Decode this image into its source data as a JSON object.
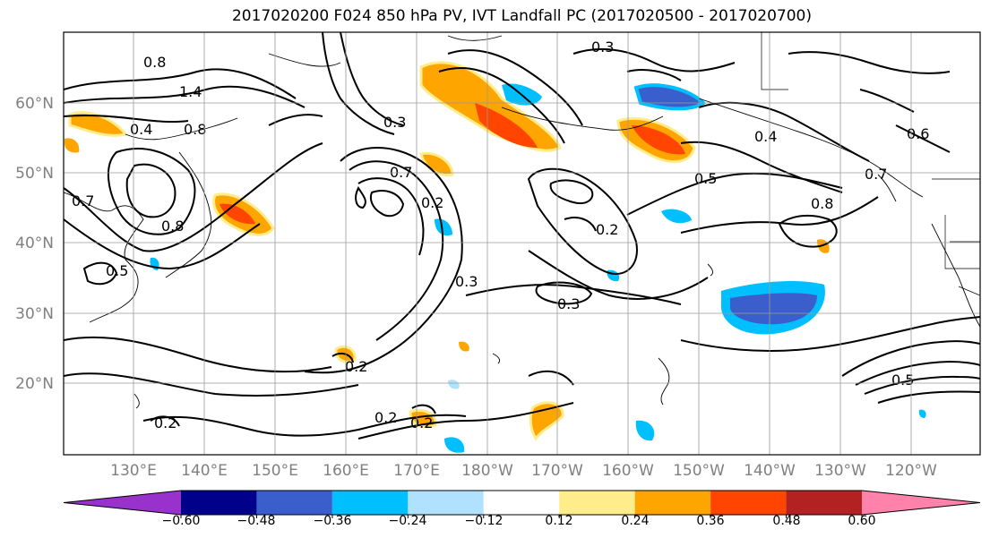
{
  "title": "2017020200 F024 850 hPa PV, IVT Landfall PC (2017020500 - 2017020700)",
  "lat_labels": [
    "60°N",
    "50°N",
    "40°N",
    "30°N",
    "20°N"
  ],
  "lon_labels": [
    "130°E",
    "140°E",
    "150°E",
    "160°E",
    "170°E",
    "180°W",
    "170°W",
    "160°W",
    "150°W",
    "140°W",
    "130°W",
    "120°W"
  ],
  "colorbar": {
    "colors": [
      "#9932cc",
      "#00008b",
      "#3a5fcd",
      "#00bfff",
      "#b0e2ff",
      "#ffffff",
      "#ffec8b",
      "#ffa500",
      "#ff4500",
      "#b22222",
      "#ff82ab"
    ],
    "tick_labels": [
      "−0.60",
      "−0.48",
      "−0.36",
      "−0.24",
      "−0.12",
      "0.12",
      "0.24",
      "0.36",
      "0.48",
      "0.60"
    ]
  },
  "contour_labels": [
    "0.4",
    "1.4",
    "0.8",
    "0.7",
    "0.8",
    "0.5",
    "0.8",
    "0.7",
    "0.2",
    "0.3",
    "0.3",
    "0.4",
    "0.5",
    "0.8",
    "0.7",
    "0.2",
    "0.2",
    "0.2",
    "0.2",
    "0.2",
    "0.3",
    "0.5",
    "0.6",
    "0.3"
  ]
}
